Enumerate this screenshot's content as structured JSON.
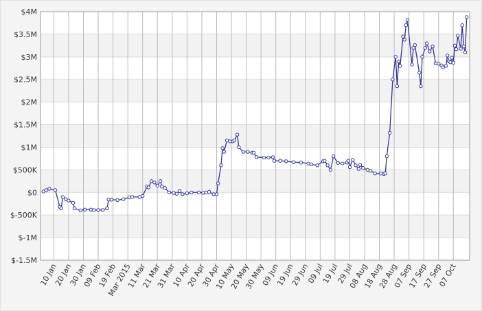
{
  "chart_data": {
    "type": "line",
    "x": [
      "2015-01-03",
      "2015-01-05",
      "2015-01-07",
      "2015-01-11",
      "2015-01-14",
      "2015-01-15",
      "2015-01-16",
      "2015-01-18",
      "2015-01-20",
      "2015-01-23",
      "2015-01-24",
      "2015-01-28",
      "2015-01-31",
      "2015-02-04",
      "2015-02-06",
      "2015-02-09",
      "2015-02-12",
      "2015-02-15",
      "2015-02-16",
      "2015-02-18",
      "2015-02-22",
      "2015-02-26",
      "2015-03-02",
      "2015-03-04",
      "2015-03-09",
      "2015-03-11",
      "2015-03-14",
      "2015-03-15",
      "2015-03-17",
      "2015-03-19",
      "2015-03-21",
      "2015-03-23",
      "2015-03-24",
      "2015-03-26",
      "2015-03-29",
      "2015-04-01",
      "2015-04-03",
      "2015-04-05",
      "2015-04-07",
      "2015-04-10",
      "2015-04-13",
      "2015-04-18",
      "2015-04-21",
      "2015-04-23",
      "2015-04-25",
      "2015-04-28",
      "2015-04-30",
      "2015-05-01",
      "2015-05-03",
      "2015-05-04",
      "2015-05-05",
      "2015-05-07",
      "2015-05-09",
      "2015-05-11",
      "2015-05-12",
      "2015-05-14",
      "2015-05-15",
      "2015-05-18",
      "2015-05-21",
      "2015-05-24",
      "2015-05-25",
      "2015-05-27",
      "2015-06-01",
      "2015-06-04",
      "2015-06-07",
      "2015-06-08",
      "2015-06-12",
      "2015-06-16",
      "2015-06-21",
      "2015-06-26",
      "2015-07-01",
      "2015-07-03",
      "2015-07-07",
      "2015-07-11",
      "2015-07-12",
      "2015-07-14",
      "2015-07-16",
      "2015-07-18",
      "2015-07-21",
      "2015-07-24",
      "2015-07-27",
      "2015-07-28",
      "2015-07-29",
      "2015-07-31",
      "2015-08-02",
      "2015-08-04",
      "2015-08-05",
      "2015-08-07",
      "2015-08-10",
      "2015-08-12",
      "2015-08-15",
      "2015-08-19",
      "2015-08-21",
      "2015-08-22",
      "2015-08-23",
      "2015-08-25",
      "2015-08-27",
      "2015-08-29",
      "2015-08-30",
      "2015-08-31",
      "2015-09-01",
      "2015-09-03",
      "2015-09-04",
      "2015-09-05",
      "2015-09-06",
      "2015-09-09",
      "2015-09-10",
      "2015-09-11",
      "2015-09-14",
      "2015-09-15",
      "2015-09-16",
      "2015-09-18",
      "2015-09-19",
      "2015-09-21",
      "2015-09-23",
      "2015-09-25",
      "2015-09-27",
      "2015-09-29",
      "2015-09-30",
      "2015-10-02",
      "2015-10-03",
      "2015-10-04",
      "2015-10-05",
      "2015-10-06",
      "2015-10-07",
      "2015-10-08",
      "2015-10-09",
      "2015-10-10",
      "2015-10-12",
      "2015-10-13",
      "2015-10-14",
      "2015-10-15",
      "2015-10-16"
    ],
    "values": [
      20000,
      50000,
      80000,
      50000,
      -320000,
      -350000,
      -100000,
      -150000,
      -180000,
      -230000,
      -350000,
      -400000,
      -380000,
      -380000,
      -390000,
      -390000,
      -390000,
      -350000,
      -160000,
      -160000,
      -170000,
      -150000,
      -110000,
      -100000,
      -100000,
      -80000,
      130000,
      110000,
      250000,
      220000,
      150000,
      250000,
      130000,
      100000,
      0,
      -10000,
      -30000,
      30000,
      -40000,
      -20000,
      0,
      0,
      -10000,
      0,
      10000,
      -40000,
      -40000,
      200000,
      600000,
      980000,
      900000,
      1150000,
      1130000,
      1130000,
      1150000,
      1280000,
      1000000,
      900000,
      900000,
      880000,
      880000,
      780000,
      770000,
      770000,
      780000,
      700000,
      700000,
      690000,
      670000,
      660000,
      640000,
      620000,
      600000,
      690000,
      700000,
      600000,
      500000,
      800000,
      650000,
      640000,
      660000,
      700000,
      560000,
      720000,
      600000,
      520000,
      610000,
      540000,
      500000,
      480000,
      420000,
      420000,
      410000,
      420000,
      800000,
      1320000,
      2500000,
      3000000,
      2350000,
      2900000,
      2800000,
      3450000,
      3380000,
      3700000,
      3820000,
      2830000,
      3200000,
      3260000,
      2650000,
      2350000,
      3000000,
      3200000,
      3300000,
      3120000,
      3230000,
      2860000,
      2850000,
      2810000,
      2770000,
      2800000,
      3030000,
      2900000,
      2880000,
      2980000,
      2870000,
      3250000,
      3170000,
      3470000,
      3180000,
      3700000,
      3230000,
      3100000,
      3880000
    ],
    "color": "#333399",
    "xlim": [
      "2015-01-01",
      "2015-10-18"
    ],
    "xticks": [
      {
        "value": "2015-01-10",
        "label": "10 Jan"
      },
      {
        "value": "2015-01-20",
        "label": "20 Jan"
      },
      {
        "value": "2015-01-30",
        "label": "30 Jan"
      },
      {
        "value": "2015-02-09",
        "label": "09 Feb"
      },
      {
        "value": "2015-02-19",
        "label": "19 Feb"
      },
      {
        "value": "2015-03-01",
        "label": "Mar 2015"
      },
      {
        "value": "2015-03-11",
        "label": "11 Mar"
      },
      {
        "value": "2015-03-21",
        "label": "21 Mar"
      },
      {
        "value": "2015-03-31",
        "label": "31 Mar"
      },
      {
        "value": "2015-04-10",
        "label": "10 Apr"
      },
      {
        "value": "2015-04-20",
        "label": "20 Apr"
      },
      {
        "value": "2015-04-30",
        "label": "30 Apr"
      },
      {
        "value": "2015-05-10",
        "label": "10 May"
      },
      {
        "value": "2015-05-20",
        "label": "20 May"
      },
      {
        "value": "2015-05-30",
        "label": "30 May"
      },
      {
        "value": "2015-06-09",
        "label": "09 Jun"
      },
      {
        "value": "2015-06-19",
        "label": "19 Jun"
      },
      {
        "value": "2015-06-29",
        "label": "29 Jun"
      },
      {
        "value": "2015-07-09",
        "label": "09 Jul"
      },
      {
        "value": "2015-07-19",
        "label": "19 Jul"
      },
      {
        "value": "2015-07-29",
        "label": "29 Jul"
      },
      {
        "value": "2015-08-08",
        "label": "08 Aug"
      },
      {
        "value": "2015-08-18",
        "label": "18 Aug"
      },
      {
        "value": "2015-08-28",
        "label": "28 Aug"
      },
      {
        "value": "2015-09-07",
        "label": "07 Sep"
      },
      {
        "value": "2015-09-17",
        "label": "17 Sep"
      },
      {
        "value": "2015-09-27",
        "label": "27 Sep"
      },
      {
        "value": "2015-10-07",
        "label": "07 Oct"
      }
    ],
    "ylim": [
      -1500000,
      4000000
    ],
    "yticks": [
      {
        "value": -1500000,
        "label": "$-1.5M"
      },
      {
        "value": -1000000,
        "label": "$-1M"
      },
      {
        "value": -500000,
        "label": "$-500K"
      },
      {
        "value": 0,
        "label": "$0"
      },
      {
        "value": 500000,
        "label": "$500K"
      },
      {
        "value": 1000000,
        "label": "$1M"
      },
      {
        "value": 1500000,
        "label": "$1.5M"
      },
      {
        "value": 2000000,
        "label": "$2M"
      },
      {
        "value": 2500000,
        "label": "$2.5M"
      },
      {
        "value": 3000000,
        "label": "$3M"
      },
      {
        "value": 3500000,
        "label": "$3.5M"
      },
      {
        "value": 4000000,
        "label": "$4M"
      }
    ],
    "grid": true
  }
}
